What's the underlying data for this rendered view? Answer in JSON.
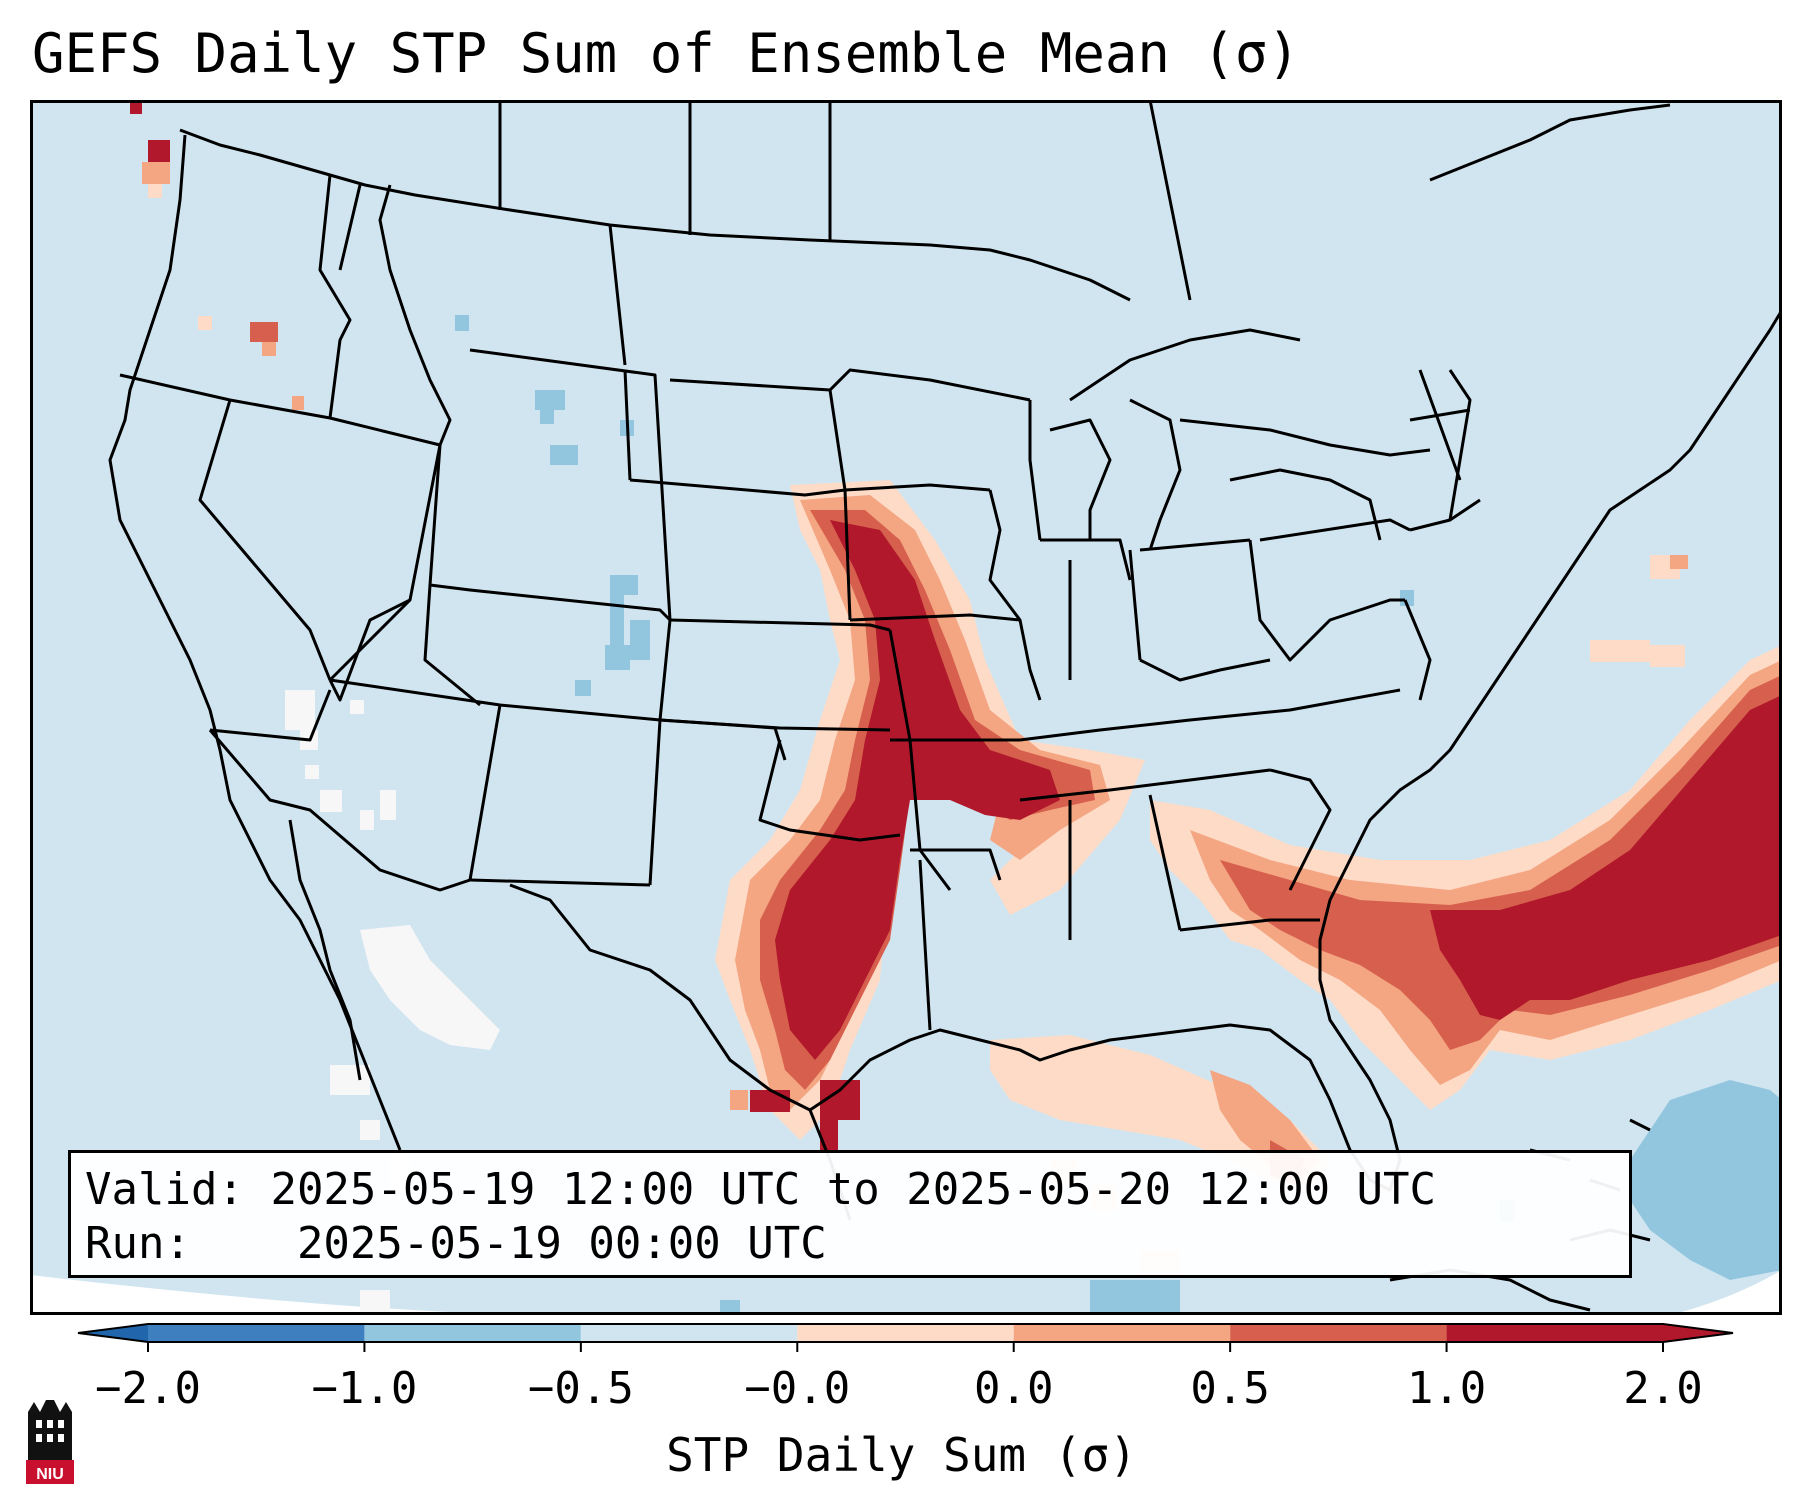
{
  "title": "GEFS Daily STP Sum of Ensemble Mean (σ)",
  "info": {
    "valid_label": "Valid:",
    "valid_value": "2025-05-19 12:00 UTC to 2025-05-20 12:00 UTC",
    "run_label": "Run:",
    "run_value": "2025-05-19 00:00 UTC"
  },
  "colorbar": {
    "label": "STP Daily Sum (σ)",
    "ticks": [
      "−2.0",
      "−1.0",
      "−0.5",
      "−0.0",
      "0.0",
      "0.5",
      "1.0",
      "2.0"
    ],
    "colors": [
      "#3d7fbf",
      "#92c5de",
      "#d1e5f0",
      "#f7f7f7",
      "#fddbc7",
      "#f4a582",
      "#d6604d",
      "#b2182b"
    ],
    "extend": "both"
  },
  "map_colors": {
    "background": "#d1e5f0",
    "outside": "#ffffff",
    "boundary": "#000000"
  },
  "logo": {
    "text": "NIU"
  }
}
